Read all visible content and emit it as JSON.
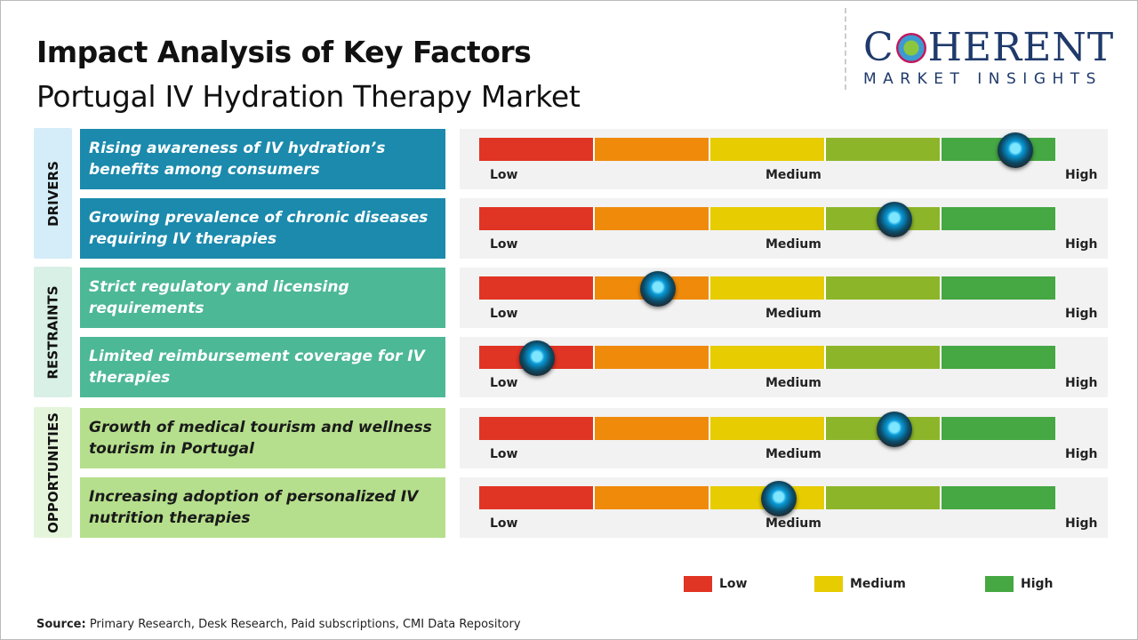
{
  "header": {
    "title": "Impact Analysis of Key Factors",
    "subtitle": "Portugal IV Hydration Therapy Market"
  },
  "logo": {
    "main": "COHERENT",
    "sub": "MARKET INSIGHTS"
  },
  "colors": {
    "low": "#e03424",
    "low_mid": "#ef8a0a",
    "medium": "#e6cc00",
    "mid_high": "#8db52a",
    "high": "#45a843",
    "drivers": "#1b8aac",
    "restraints": "#4db896",
    "opportunities": "#b5df8c"
  },
  "scale_labels": {
    "low": "Low",
    "medium": "Medium",
    "high": "High"
  },
  "chart_data": {
    "type": "table",
    "scale": [
      "Low",
      "Medium",
      "High"
    ],
    "categories": [
      {
        "name": "DRIVERS",
        "factors": [
          {
            "text": "Rising awareness of IV hydration’s benefits among consumers",
            "impact": 0.93
          },
          {
            "text": "Growing prevalence of chronic diseases requiring IV therapies",
            "impact": 0.72
          }
        ]
      },
      {
        "name": "RESTRAINTS",
        "factors": [
          {
            "text": "Strict regulatory and licensing requirements",
            "impact": 0.31
          },
          {
            "text": "Limited reimbursement coverage for IV therapies",
            "impact": 0.1
          }
        ]
      },
      {
        "name": "OPPORTUNITIES",
        "factors": [
          {
            "text": "Growth of medical tourism and wellness tourism in Portugal",
            "impact": 0.72
          },
          {
            "text": "Increasing adoption of personalized IV nutrition therapies",
            "impact": 0.52
          }
        ]
      }
    ]
  },
  "legend": [
    {
      "label": "Low",
      "color": "#e03424"
    },
    {
      "label": "Medium",
      "color": "#e6cc00"
    },
    {
      "label": "High",
      "color": "#45a843"
    }
  ],
  "source": {
    "label": "Source:",
    "text": " Primary Research, Desk Research, Paid subscriptions, CMI Data Repository"
  }
}
